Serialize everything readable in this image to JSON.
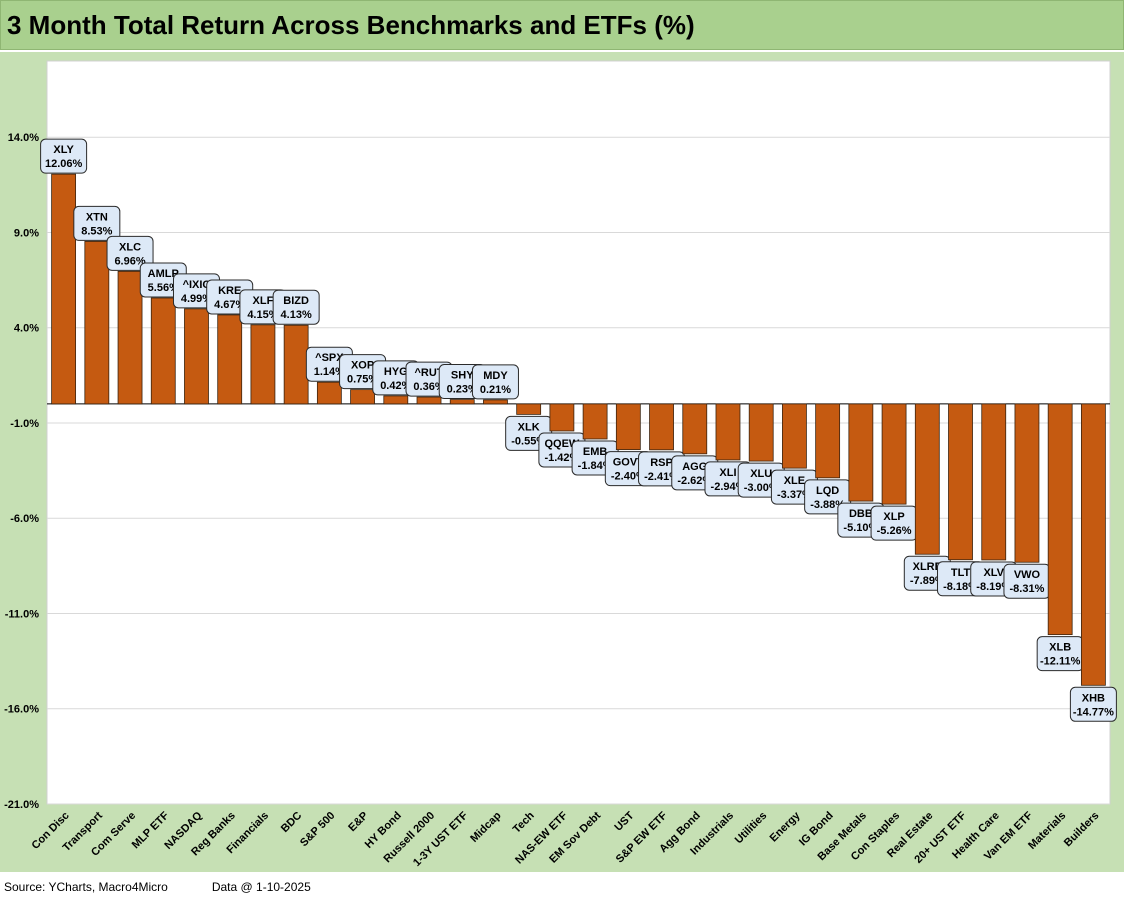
{
  "title": "3 Month Total Return Across Benchmarks and ETFs (%)",
  "footer": {
    "source": "Source: YCharts, Macro4Micro",
    "date": "Data @ 1-10-2025"
  },
  "colors": {
    "bar": "#c55a11",
    "title_bg": "#a9d08e",
    "frame_bg": "#c6e0b4",
    "label_bg": "#dde9f7"
  },
  "chart_data": {
    "type": "bar",
    "categories": [
      "Con Disc",
      "Transport",
      "Com Serve",
      "MLP ETF",
      "NASDAQ",
      "Reg Banks",
      "Financials",
      "BDC",
      "S&P 500",
      "E&P",
      "HY Bond",
      "Russell 2000",
      "1-3Y UST ETF",
      "Midcap",
      "Tech",
      "NAS-EW ETF",
      "EM Sov Debt",
      "UST",
      "S&P EW ETF",
      "Agg Bond",
      "Industrials",
      "Utilities",
      "Energy",
      "IG Bond",
      "Base Metals",
      "Con Staples",
      "Real Estate",
      "20+ UST ETF",
      "Health Care",
      "Van EM ETF",
      "Materials",
      "Builders"
    ],
    "tickers": [
      "XLY",
      "XTN",
      "XLC",
      "AMLP",
      "^IXIC",
      "KRE",
      "XLF",
      "BIZD",
      "^SPX",
      "XOP",
      "HYG",
      "^RUT",
      "SHY",
      "MDY",
      "XLK",
      "QQEW",
      "EMB",
      "GOVT",
      "RSP",
      "AGG",
      "XLI",
      "XLU",
      "XLE",
      "LQD",
      "DBB",
      "XLP",
      "XLRE",
      "TLT",
      "XLV",
      "VWO",
      "XLB",
      "XHB"
    ],
    "values": [
      12.06,
      8.53,
      6.96,
      5.56,
      4.99,
      4.67,
      4.15,
      4.13,
      1.14,
      0.75,
      0.42,
      0.36,
      0.23,
      0.21,
      -0.55,
      -1.42,
      -1.84,
      -2.4,
      -2.41,
      -2.62,
      -2.94,
      -3.0,
      -3.37,
      -3.88,
      -5.1,
      -5.26,
      -7.89,
      -8.18,
      -8.19,
      -8.31,
      -12.11,
      -14.77
    ],
    "value_labels": [
      "12.06%",
      "8.53%",
      "6.96%",
      "5.56%",
      "4.99%",
      "4.67%",
      "4.15%",
      "4.13%",
      "1.14%",
      "0.75%",
      "0.42%",
      "0.36%",
      "0.23%",
      "0.21%",
      "-0.55%",
      "-1.42%",
      "-1.84%",
      "-2.40%",
      "-2.41%",
      "-2.62%",
      "-2.94%",
      "-3.00%",
      "-3.37%",
      "-3.88%",
      "-5.10%",
      "-5.26%",
      "-7.89%",
      "-8.18%",
      "-8.19%",
      "-8.31%",
      "-12.11%",
      "-14.77%"
    ],
    "yticks": [
      "14.0%",
      "9.0%",
      "4.0%",
      "-1.0%",
      "-6.0%",
      "-11.0%",
      "-16.0%",
      "-21.0%"
    ],
    "ylim": [
      -21,
      18
    ],
    "grid": true,
    "legend": "none"
  }
}
